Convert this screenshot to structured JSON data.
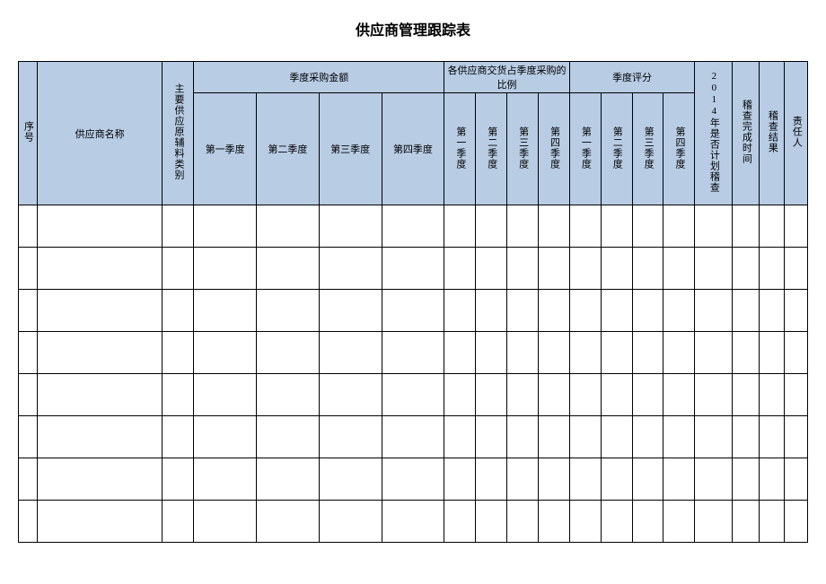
{
  "title": "供应商管理跟踪表",
  "header": {
    "seq": "序号",
    "supplier_name": "供应商名称",
    "material": "主要供应原辅料类别",
    "group_amount": "季度采购金额",
    "group_ratio": "各供应商交货占季度采购的比例",
    "group_score": "季度评分",
    "q1": "第一季度",
    "q2": "第二季度",
    "q3": "第三季度",
    "q4": "第四季度",
    "plan_audit": "2014年是否计划稽查",
    "audit_time": "稽查完成时间",
    "audit_result": "稽查结果",
    "responsible": "责任人"
  },
  "body_row_count": 8,
  "style": {
    "header_bg": "#b8cce4",
    "border_color": "#000000",
    "title_fontsize": 16,
    "header_fontsize": 11,
    "header_row1_height": 34,
    "header_row2_height": 124,
    "body_row_height": 46
  }
}
